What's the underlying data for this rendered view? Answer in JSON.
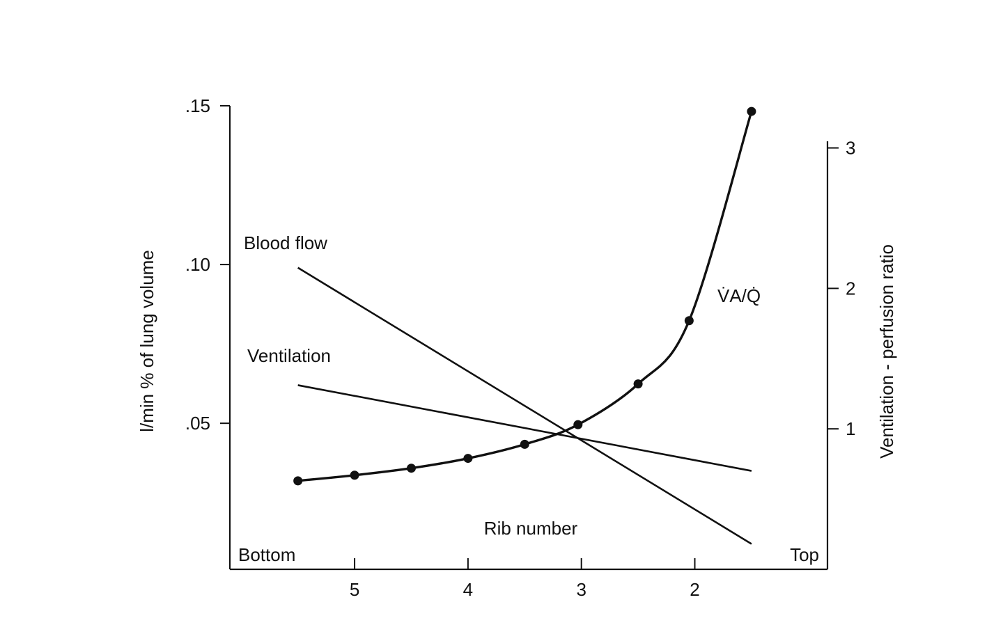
{
  "chart_data": {
    "type": "line",
    "title": "",
    "xlabel": "Rib number",
    "x_end_labels": {
      "left": "Bottom",
      "right": "Top"
    },
    "x_tick_labels": [
      "5",
      "4",
      "3",
      "2"
    ],
    "x_tick_values": [
      5,
      4,
      3,
      2
    ],
    "xlim": [
      6.1,
      0.83
    ],
    "ylabel_left": "l/min % of lung volume",
    "y_left_tick_labels": [
      ".05",
      ".10",
      ".15"
    ],
    "y_left_tick_values": [
      0.05,
      0.1,
      0.15
    ],
    "ylim_left": [
      0.004,
      0.15
    ],
    "ylabel_right": "Ventilation - perfusion ratio",
    "y_right_tick_labels": [
      "1",
      "2",
      "3"
    ],
    "y_right_tick_values": [
      1,
      2,
      3
    ],
    "ylim_right": [
      0,
      3.3
    ],
    "grid": false,
    "series": [
      {
        "name": "Blood flow",
        "axis": "left",
        "x": [
          5.5,
          1.5
        ],
        "y": [
          0.099,
          0.012
        ]
      },
      {
        "name": "Ventilation",
        "axis": "left",
        "x": [
          5.5,
          1.5
        ],
        "y": [
          0.062,
          0.035
        ]
      },
      {
        "name": "V̇A/Q̇",
        "axis": "right",
        "x": [
          5.5,
          5.0,
          4.5,
          4.0,
          3.5,
          3.03,
          2.5,
          2.05,
          1.5
        ],
        "y": [
          0.63,
          0.67,
          0.72,
          0.79,
          0.89,
          1.03,
          1.32,
          1.77,
          3.26
        ],
        "markers": true
      }
    ]
  }
}
